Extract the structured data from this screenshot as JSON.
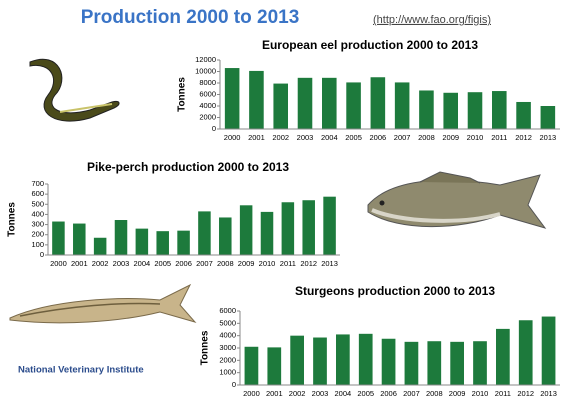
{
  "header": {
    "title": "Production 2000 to 2013",
    "link": "(http://www.fao.org/figis)"
  },
  "footer": {
    "logo": "National Veterinary Institute"
  },
  "chart_data": [
    {
      "type": "bar",
      "title": "European eel production 2000 to 2013",
      "ylabel": "Tonnes",
      "categories": [
        "2000",
        "2001",
        "2002",
        "2003",
        "2004",
        "2005",
        "2006",
        "2007",
        "2008",
        "2009",
        "2010",
        "2011",
        "2012",
        "2013"
      ],
      "values": [
        10600,
        10100,
        7900,
        8900,
        8900,
        8100,
        9000,
        8100,
        6700,
        6300,
        6400,
        6600,
        4700,
        4000
      ],
      "color": "#1d7a3c",
      "ylim": [
        0,
        12000
      ],
      "yticks": [
        0,
        2000,
        4000,
        6000,
        8000,
        10000,
        12000
      ],
      "grid": false
    },
    {
      "type": "bar",
      "title": "Pike-perch production 2000 to 2013",
      "ylabel": "Tonnes",
      "categories": [
        "2000",
        "2001",
        "2002",
        "2003",
        "2004",
        "2005",
        "2006",
        "2007",
        "2008",
        "2009",
        "2010",
        "2011",
        "2012",
        "2013"
      ],
      "values": [
        330,
        310,
        170,
        345,
        260,
        235,
        240,
        430,
        370,
        490,
        425,
        520,
        540,
        575
      ],
      "color": "#1d7a3c",
      "ylim": [
        0,
        700
      ],
      "yticks": [
        0,
        100,
        200,
        300,
        400,
        500,
        600,
        700
      ],
      "grid": false
    },
    {
      "type": "bar",
      "title": "Sturgeons production 2000 to 2013",
      "ylabel": "Tonnes",
      "categories": [
        "2000",
        "2001",
        "2002",
        "2003",
        "2004",
        "2005",
        "2006",
        "2007",
        "2008",
        "2009",
        "2010",
        "2011",
        "2012",
        "2013"
      ],
      "values": [
        3100,
        3050,
        4000,
        3850,
        4100,
        4150,
        3750,
        3500,
        3550,
        3500,
        3550,
        4550,
        5250,
        5550
      ],
      "color": "#1d7a3c",
      "ylim": [
        0,
        6000
      ],
      "yticks": [
        0,
        1000,
        2000,
        3000,
        4000,
        5000,
        6000
      ],
      "grid": false
    }
  ]
}
